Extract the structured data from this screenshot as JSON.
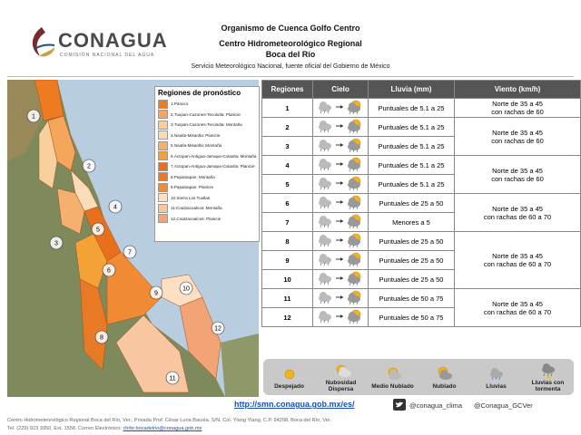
{
  "header": {
    "logo": "CONAGUA",
    "logo_subtitle": "COMISIÓN NACIONAL DEL AGUA",
    "title": "Organismo de Cuenca Golfo Centro",
    "subtitle": "Centro Hidrometeorológico Regional",
    "location": "Boca del Río",
    "service": "Servicio Meteorológico Nacional, fuente oficial del Gobierno de México"
  },
  "map": {
    "legend_title": "Regiones de pronóstico",
    "regions": [
      {
        "label": "1.Pánuco",
        "color": "#ee7a22"
      },
      {
        "label": "2.Tuxpan-Cazones-Tecolutla: Planicie",
        "color": "#f6a65a"
      },
      {
        "label": "3.Tuxpan-Cazones-Tecolutla: Montaña",
        "color": "#f9cf9c"
      },
      {
        "label": "4.Nautla-Misantla: Planicie",
        "color": "#fbdcb8"
      },
      {
        "label": "5.Nautla-Misantla: Montaña",
        "color": "#f5b070"
      },
      {
        "label": "6.Actopan-Antigua-Jamapa-Cotaxtla: Montaña",
        "color": "#f4a236"
      },
      {
        "label": "7.Actopan-Antigua-Jamapa-Cotaxtla: Planicie",
        "color": "#e8701c"
      },
      {
        "label": "8.Papaloapan: Montaña",
        "color": "#e87a26"
      },
      {
        "label": "9.Papaloapan: Planicie",
        "color": "#f08a34"
      },
      {
        "label": "10.Sierra Los Tuxtlas",
        "color": "#fde0c4"
      },
      {
        "label": "11.Coatzacoalcos: Montaña",
        "color": "#f8c6a0"
      },
      {
        "label": "12.Coatzacoalcos: Planicie",
        "color": "#f2a476"
      }
    ],
    "markers": [
      "1",
      "2",
      "3",
      "4",
      "5",
      "6",
      "7",
      "8",
      "9",
      "10",
      "11",
      "12"
    ]
  },
  "table": {
    "columns": [
      "Regiones",
      "Cielo",
      "Lluvia (mm)",
      "Viento (km/h)"
    ],
    "rows": [
      {
        "region": "1",
        "rain": "Puntuales de 5.1 a 25"
      },
      {
        "region": "2",
        "rain": "Puntuales de 5.1 a 25"
      },
      {
        "region": "3",
        "rain": "Puntuales de 5.1 a 25"
      },
      {
        "region": "4",
        "rain": "Puntuales de 5.1 a 25"
      },
      {
        "region": "5",
        "rain": "Puntuales de 5.1 a 25"
      },
      {
        "region": "6",
        "rain": "Puntuales de 25 a 50"
      },
      {
        "region": "7",
        "rain": "Menores a 5"
      },
      {
        "region": "8",
        "rain": "Puntuales de 25 a 50"
      },
      {
        "region": "9",
        "rain": "Puntuales de 25 a 50"
      },
      {
        "region": "10",
        "rain": "Puntuales de 25 a 50"
      },
      {
        "region": "11",
        "rain": "Puntuales de 50 a 75"
      },
      {
        "region": "12",
        "rain": "Puntuales de 50 a 75"
      }
    ],
    "wind": [
      [
        "Norte de 35 a 45",
        "con rachas de 60"
      ],
      [
        "Norte de 35 a 45",
        "con rachas de 60"
      ],
      [
        "Norte de 35 a 45",
        "con rachas de 60"
      ],
      [
        "Norte de 35 a 45",
        "con rachas de 60 a 70"
      ],
      [
        "Norte de 35 a 45",
        "con rachas de 60 a 70"
      ],
      [
        "Norte de 35 a 45",
        "con rachas de 60 a 70"
      ]
    ]
  },
  "legend": [
    "Despejado",
    "Nubosidad Dispersa",
    "Medio Nublado",
    "Nublado",
    "Lluvias",
    "Lluvias con tormenta"
  ],
  "footer": {
    "url": "http://smn.conagua.gob.mx/es/",
    "handle1": "@conagua_clima",
    "handle2": "@Conagua_GCVer",
    "address": "Centro Hidrometeorológico Regional Boca del Río, Ver., Privada Prof. César Luria Bausta, S/N, Col. Ylang Ylang, C.P. 94298, Boca del Río, Ver.",
    "contact": "Tel. (229) 923 3950, Ext. 1558. Correo Electrónico:",
    "email": "chrbr.bocadelrio@conagua.gob.mx"
  }
}
